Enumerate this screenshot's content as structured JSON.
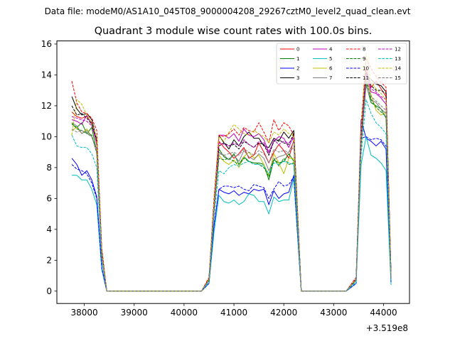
{
  "chart_data": {
    "type": "line",
    "suptitle": "Data file: modeM0/AS1A10_045T08_9000004208_29267cztM0_level2_quad_clean.evt",
    "title": "Quadrant 3 module wise count rates with 100.0s bins.",
    "xlabel": "",
    "ylabel": "",
    "x_offset_label": "+3.519e8",
    "xlim": [
      37450,
      44520
    ],
    "ylim": [
      -0.8,
      16.2
    ],
    "xticks": [
      38000,
      39000,
      40000,
      41000,
      42000,
      43000,
      44000
    ],
    "xtick_labels": [
      "38000",
      "39000",
      "40000",
      "41000",
      "42000",
      "43000",
      "44000"
    ],
    "yticks": [
      0,
      2,
      4,
      6,
      8,
      10,
      12,
      14,
      16
    ],
    "ytick_labels": [
      "0",
      "2",
      "4",
      "6",
      "8",
      "10",
      "12",
      "14",
      "16"
    ],
    "legend_position": "top-right",
    "grid": false,
    "segments": [
      {
        "start": 37750,
        "count": 7
      },
      {
        "start": 38450,
        "count": 20
      },
      {
        "start": 40500,
        "count": 18
      },
      {
        "start": 42350,
        "count": 10
      },
      {
        "start": 43450,
        "count": 8
      }
    ],
    "series": [
      {
        "name": "0",
        "color": "#ff0000",
        "dash": "solid",
        "values": [
          11.6,
          11.3,
          11.2,
          11.3,
          10.9,
          9.5,
          2.5,
          0,
          0,
          0,
          0,
          0,
          0,
          0,
          0,
          0,
          0,
          0,
          0,
          0,
          0,
          0,
          0,
          0,
          0,
          0,
          0,
          0.8,
          5.5,
          9.7,
          9.3,
          9.0,
          8.6,
          8.9,
          9.3,
          8.6,
          8.8,
          9.6,
          9.0,
          8.3,
          9.0,
          9.5,
          9.1,
          8.6,
          9.8,
          0,
          0,
          0,
          0,
          0,
          0,
          0,
          0,
          0,
          0,
          0.8,
          9.8,
          14.5,
          13.2,
          13.6,
          13.1,
          12.6,
          1.0
        ]
      },
      {
        "name": "1",
        "color": "#008000",
        "dash": "solid",
        "values": [
          10.8,
          10.6,
          10.9,
          10.2,
          10.6,
          9.0,
          2.2,
          0,
          0,
          0,
          0,
          0,
          0,
          0,
          0,
          0,
          0,
          0,
          0,
          0,
          0,
          0,
          0,
          0,
          0,
          0,
          0,
          0.7,
          5.2,
          9.2,
          8.7,
          8.5,
          8.9,
          8.2,
          8.7,
          8.4,
          8.3,
          8.3,
          8.2,
          7.2,
          8.5,
          8.3,
          8.4,
          8.9,
          8.4,
          0,
          0,
          0,
          0,
          0,
          0,
          0,
          0,
          0,
          0,
          0.7,
          9.5,
          13.4,
          12.2,
          12.0,
          11.8,
          11.2,
          0.8
        ]
      },
      {
        "name": "2",
        "color": "#0000ff",
        "dash": "solid",
        "values": [
          8.6,
          8.2,
          7.5,
          7.8,
          7.2,
          6.1,
          1.5,
          0,
          0,
          0,
          0,
          0,
          0,
          0,
          0,
          0,
          0,
          0,
          0,
          0,
          0,
          0,
          0,
          0,
          0,
          0,
          0,
          0.5,
          4.2,
          6.6,
          6.4,
          6.3,
          6.5,
          6.2,
          6.4,
          6.3,
          6.6,
          6.5,
          6.6,
          5.6,
          6.5,
          6.0,
          6.3,
          6.4,
          7.5,
          0,
          0,
          0,
          0,
          0,
          0,
          0,
          0,
          0,
          0,
          0.5,
          11.1,
          9.9,
          9.7,
          9.4,
          9.7,
          9.2,
          0.6
        ]
      },
      {
        "name": "3",
        "color": "#000000",
        "dash": "solid",
        "values": [
          12.6,
          11.8,
          11.4,
          11.5,
          11.1,
          9.8,
          2.6,
          0,
          0,
          0,
          0,
          0,
          0,
          0,
          0,
          0,
          0,
          0,
          0,
          0,
          0,
          0,
          0,
          0,
          0,
          0,
          0,
          0.8,
          5.6,
          10.1,
          9.6,
          9.2,
          9.8,
          9.4,
          10.0,
          10.3,
          9.9,
          9.9,
          9.4,
          9.3,
          9.9,
          9.7,
          10.3,
          9.9,
          10.4,
          0,
          0,
          0,
          0,
          0,
          0,
          0,
          0,
          0,
          0,
          0.8,
          10.2,
          14.0,
          13.7,
          13.4,
          13.3,
          12.9,
          1.0
        ]
      },
      {
        "name": "4",
        "color": "#bf00bf",
        "dash": "solid",
        "values": [
          11.1,
          11.0,
          10.8,
          11.4,
          10.8,
          9.6,
          2.4,
          0,
          0,
          0,
          0,
          0,
          0,
          0,
          0,
          0,
          0,
          0,
          0,
          0,
          0,
          0,
          0,
          0,
          0,
          0,
          0,
          0.8,
          5.5,
          10.1,
          10.1,
          9.9,
          10.2,
          9.7,
          10.5,
          10.1,
          10.0,
          10.2,
          9.8,
          9.0,
          9.7,
          10.0,
          9.9,
          9.3,
          10.1,
          0,
          0,
          0,
          0,
          0,
          0,
          0,
          0,
          0,
          0,
          0.8,
          9.9,
          14.1,
          12.9,
          12.8,
          12.5,
          12.1,
          0.9
        ]
      },
      {
        "name": "5",
        "color": "#00bfbf",
        "dash": "solid",
        "values": [
          7.5,
          7.5,
          7.2,
          7.2,
          6.6,
          5.6,
          1.4,
          0,
          0,
          0,
          0,
          0,
          0,
          0,
          0,
          0,
          0,
          0,
          0,
          0,
          0,
          0,
          0,
          0,
          0,
          0,
          0,
          0.5,
          3.8,
          6.2,
          5.8,
          5.7,
          5.9,
          5.6,
          5.8,
          6.3,
          6.2,
          5.8,
          5.8,
          5.0,
          6.1,
          5.8,
          5.9,
          5.9,
          7.3,
          0,
          0,
          0,
          0,
          0,
          0,
          0,
          0,
          0,
          0,
          0.5,
          8.2,
          10.0,
          8.8,
          8.6,
          8.3,
          7.8,
          0.4
        ]
      },
      {
        "name": "6",
        "color": "#bfbf00",
        "dash": "solid",
        "values": [
          10.4,
          10.6,
          10.2,
          10.5,
          10.0,
          9.0,
          2.2,
          0,
          0,
          0,
          0,
          0,
          0,
          0,
          0,
          0,
          0,
          0,
          0,
          0,
          0,
          0,
          0,
          0,
          0,
          0,
          0,
          0.7,
          5.0,
          8.8,
          8.4,
          8.2,
          8.5,
          8.0,
          8.7,
          9.0,
          8.6,
          8.8,
          8.2,
          7.5,
          8.9,
          8.3,
          7.6,
          8.6,
          8.6,
          0,
          0,
          0,
          0,
          0,
          0,
          0,
          0,
          0,
          0,
          0.7,
          9.3,
          13.8,
          12.7,
          11.7,
          11.4,
          11.6,
          0.8
        ]
      },
      {
        "name": "7",
        "color": "#808080",
        "dash": "solid",
        "values": [
          10.9,
          10.7,
          10.2,
          10.4,
          10.0,
          9.1,
          2.3,
          0,
          0,
          0,
          0,
          0,
          0,
          0,
          0,
          0,
          0,
          0,
          0,
          0,
          0,
          0,
          0,
          0,
          0,
          0,
          0,
          0.7,
          5.1,
          9.0,
          8.8,
          8.5,
          8.8,
          8.4,
          9.1,
          8.7,
          8.5,
          8.9,
          8.6,
          7.8,
          8.5,
          8.7,
          8.8,
          9.0,
          9.7,
          0,
          0,
          0,
          0,
          0,
          0,
          0,
          0,
          0,
          0,
          0.7,
          9.6,
          13.3,
          12.4,
          12.2,
          11.8,
          11.5,
          0.9
        ]
      },
      {
        "name": "8",
        "color": "#ff0000",
        "dash": "dashed",
        "values": [
          13.6,
          12.2,
          11.6,
          11.5,
          11.2,
          10.4,
          2.8,
          0,
          0,
          0,
          0,
          0,
          0,
          0,
          0,
          0,
          0,
          0,
          0,
          0,
          0,
          0,
          0,
          0,
          0,
          0,
          0,
          0.9,
          6.0,
          10.1,
          10.0,
          10.2,
          10.5,
          10.1,
          10.6,
          10.4,
          10.3,
          10.9,
          10.3,
          9.6,
          11.1,
          10.4,
          10.9,
          10.7,
          10.1,
          0,
          0,
          0,
          0,
          0,
          0,
          0,
          0,
          0,
          0,
          0.9,
          10.8,
          15.1,
          14.4,
          13.9,
          13.5,
          13.2,
          1.1
        ]
      },
      {
        "name": "9",
        "color": "#008000",
        "dash": "dashed",
        "values": [
          10.9,
          10.5,
          10.4,
          10.2,
          10.1,
          8.9,
          2.2,
          0,
          0,
          0,
          0,
          0,
          0,
          0,
          0,
          0,
          0,
          0,
          0,
          0,
          0,
          0,
          0,
          0,
          0,
          0,
          0,
          0.7,
          5.2,
          8.6,
          8.5,
          8.6,
          8.4,
          8.2,
          8.6,
          8.4,
          8.3,
          8.2,
          8.0,
          7.4,
          8.6,
          8.1,
          8.6,
          8.2,
          8.3,
          0,
          0,
          0,
          0,
          0,
          0,
          0,
          0,
          0,
          0,
          0.7,
          9.4,
          13.8,
          12.4,
          11.9,
          11.6,
          11.3,
          0.8
        ]
      },
      {
        "name": "10",
        "color": "#0000ff",
        "dash": "dashed",
        "values": [
          8.2,
          7.9,
          7.8,
          7.6,
          7.0,
          6.0,
          1.5,
          0,
          0,
          0,
          0,
          0,
          0,
          0,
          0,
          0,
          0,
          0,
          0,
          0,
          0,
          0,
          0,
          0,
          0,
          0,
          0,
          0.5,
          4.3,
          6.6,
          6.8,
          6.8,
          6.7,
          6.8,
          6.6,
          6.5,
          6.9,
          6.8,
          6.7,
          6.0,
          6.6,
          7.1,
          6.8,
          6.9,
          7.4,
          0,
          0,
          0,
          0,
          0,
          0,
          0,
          0,
          0,
          0,
          0.5,
          9.9,
          10.0,
          9.8,
          9.9,
          9.8,
          9.4,
          0.6
        ]
      },
      {
        "name": "11",
        "color": "#000000",
        "dash": "dashed",
        "values": [
          12.0,
          11.4,
          11.5,
          11.2,
          10.8,
          9.7,
          2.5,
          0,
          0,
          0,
          0,
          0,
          0,
          0,
          0,
          0,
          0,
          0,
          0,
          0,
          0,
          0,
          0,
          0,
          0,
          0,
          0,
          0.8,
          5.5,
          9.4,
          9.6,
          9.4,
          9.5,
          9.2,
          9.7,
          9.5,
          9.3,
          9.6,
          9.5,
          8.8,
          9.7,
          9.8,
          9.6,
          9.5,
          10.2,
          0,
          0,
          0,
          0,
          0,
          0,
          0,
          0,
          0,
          0,
          0.8,
          10.0,
          14.2,
          13.3,
          13.0,
          13.0,
          12.8,
          1.0
        ]
      },
      {
        "name": "12",
        "color": "#bf00bf",
        "dash": "dashed",
        "values": [
          11.3,
          11.2,
          11.1,
          11.0,
          10.7,
          9.6,
          2.4,
          0,
          0,
          0,
          0,
          0,
          0,
          0,
          0,
          0,
          0,
          0,
          0,
          0,
          0,
          0,
          0,
          0,
          0,
          0,
          0,
          0.8,
          5.4,
          9.6,
          9.5,
          9.4,
          9.6,
          9.4,
          9.8,
          9.5,
          9.3,
          9.7,
          9.6,
          8.9,
          9.8,
          9.5,
          9.7,
          9.6,
          9.9,
          0,
          0,
          0,
          0,
          0,
          0,
          0,
          0,
          0,
          0,
          0.8,
          9.9,
          14.0,
          13.1,
          12.9,
          12.6,
          12.4,
          0.9
        ]
      },
      {
        "name": "13",
        "color": "#00bfbf",
        "dash": "dashed",
        "values": [
          10.1,
          9.4,
          9.3,
          9.3,
          8.9,
          8.0,
          2.0,
          0,
          0,
          0,
          0,
          0,
          0,
          0,
          0,
          0,
          0,
          0,
          0,
          0,
          0,
          0,
          0,
          0,
          0,
          0,
          0,
          0.6,
          4.8,
          7.8,
          7.6,
          8.0,
          8.2,
          8.1,
          8.3,
          8.4,
          8.2,
          8.2,
          8.1,
          7.6,
          8.3,
          8.2,
          8.4,
          8.3,
          8.2,
          0,
          0,
          0,
          0,
          0,
          0,
          0,
          0,
          0,
          0,
          0.6,
          8.8,
          12.4,
          11.5,
          10.9,
          10.6,
          10.2,
          0.7
        ]
      },
      {
        "name": "14",
        "color": "#bfbf00",
        "dash": "dashed",
        "values": [
          10.1,
          12.4,
          12.1,
          11.4,
          10.9,
          9.9,
          2.5,
          0,
          0,
          0,
          0,
          0,
          0,
          0,
          0,
          0,
          0,
          0,
          0,
          0,
          0,
          0,
          0,
          0,
          0,
          0,
          0,
          0.8,
          5.6,
          10.0,
          9.7,
          10.3,
          10.8,
          10.5,
          10.2,
          10.1,
          10.4,
          10.2,
          10.0,
          9.6,
          10.3,
          10.1,
          10.5,
          10.2,
          10.1,
          0,
          0,
          0,
          0,
          0,
          0,
          0,
          0,
          0,
          0,
          0.8,
          10.4,
          15.4,
          13.5,
          13.1,
          12.8,
          12.4,
          1.0
        ]
      },
      {
        "name": "15",
        "color": "#808080",
        "dash": "dashed",
        "values": [
          10.5,
          10.3,
          10.4,
          10.2,
          10.0,
          9.0,
          2.2,
          0,
          0,
          0,
          0,
          0,
          0,
          0,
          0,
          0,
          0,
          0,
          0,
          0,
          0,
          0,
          0,
          0,
          0,
          0,
          0,
          0.7,
          5.1,
          8.9,
          8.8,
          8.9,
          9.0,
          8.8,
          9.2,
          9.0,
          8.8,
          9.1,
          8.9,
          8.3,
          9.2,
          9.0,
          9.1,
          9.0,
          9.3,
          0,
          0,
          0,
          0,
          0,
          0,
          0,
          0,
          0,
          0,
          0.7,
          9.5,
          13.5,
          12.6,
          12.3,
          12.0,
          11.7,
          0.8
        ]
      }
    ]
  }
}
